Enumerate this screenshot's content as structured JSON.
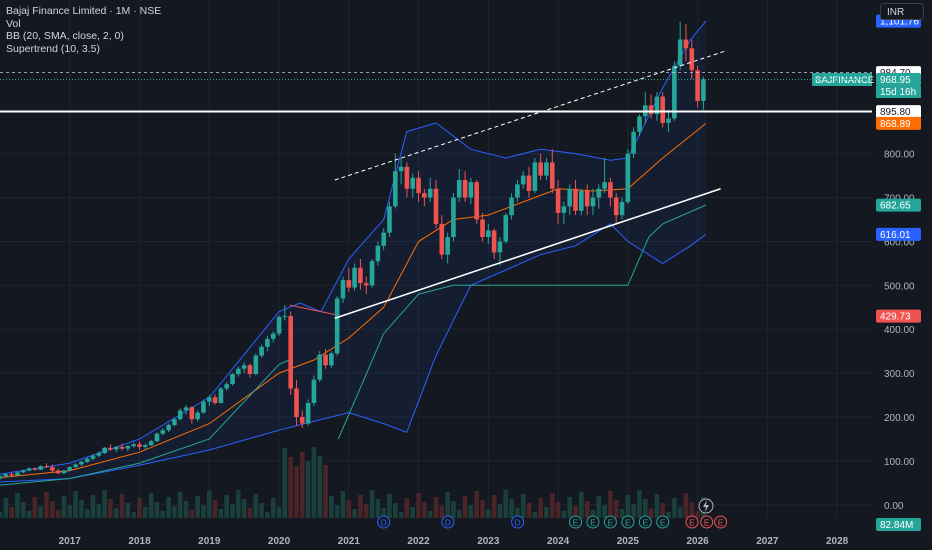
{
  "header": {
    "symbol_line": "Bajaj Finance Limited · 1M · NSE",
    "indicators": [
      "Vol",
      "BB (20, SMA, close, 2, 0)",
      "Supertrend (10, 3.5)"
    ],
    "currency": "INR"
  },
  "colors": {
    "background": "#141821",
    "grid": "#1f2430",
    "up": "#26a69a",
    "down": "#ef5350",
    "bb_band": "#2962ff",
    "bb_basis": "#ff6d00",
    "supertrend_up": "#26a69a",
    "supertrend_down": "#ef5350",
    "trendline": "#ffffff"
  },
  "chart_data": {
    "type": "candlestick",
    "title": "Bajaj Finance Limited · 1M · NSE",
    "ylim": [
      -30,
      1150
    ],
    "y_ticks": [
      0,
      100,
      200,
      300,
      400,
      500,
      600,
      700,
      800
    ],
    "y_tick_labels": [
      "0.00",
      "100.00",
      "200.00",
      "300.00",
      "400.00",
      "500.00",
      "600.00",
      "700.00",
      "800.00"
    ],
    "x_ticks": [
      "2017",
      "2018",
      "2019",
      "2020",
      "2021",
      "2022",
      "2023",
      "2024",
      "2025",
      "2026",
      "2027",
      "2028"
    ],
    "x_range": [
      2016.0,
      2028.5
    ],
    "grid": true,
    "candles": [
      [
        2016.0,
        60,
        68,
        58,
        65
      ],
      [
        2016.083,
        65,
        72,
        62,
        70
      ],
      [
        2016.167,
        70,
        74,
        65,
        67
      ],
      [
        2016.25,
        67,
        76,
        66,
        74
      ],
      [
        2016.333,
        74,
        80,
        72,
        78
      ],
      [
        2016.417,
        78,
        85,
        76,
        83
      ],
      [
        2016.5,
        83,
        86,
        78,
        80
      ],
      [
        2016.583,
        80,
        90,
        79,
        88
      ],
      [
        2016.667,
        88,
        95,
        84,
        86
      ],
      [
        2016.75,
        86,
        92,
        75,
        78
      ],
      [
        2016.833,
        78,
        82,
        70,
        72
      ],
      [
        2016.917,
        72,
        80,
        70,
        78
      ],
      [
        2017.0,
        78,
        88,
        76,
        86
      ],
      [
        2017.083,
        86,
        95,
        84,
        92
      ],
      [
        2017.167,
        92,
        100,
        88,
        98
      ],
      [
        2017.25,
        98,
        108,
        95,
        105
      ],
      [
        2017.333,
        105,
        115,
        102,
        112
      ],
      [
        2017.417,
        112,
        122,
        108,
        118
      ],
      [
        2017.5,
        118,
        132,
        116,
        130
      ],
      [
        2017.583,
        130,
        138,
        122,
        126
      ],
      [
        2017.667,
        126,
        134,
        120,
        132
      ],
      [
        2017.75,
        132,
        140,
        124,
        128
      ],
      [
        2017.833,
        128,
        136,
        122,
        134
      ],
      [
        2017.917,
        134,
        142,
        130,
        138
      ],
      [
        2018.0,
        138,
        145,
        125,
        132
      ],
      [
        2018.083,
        132,
        140,
        126,
        136
      ],
      [
        2018.167,
        136,
        148,
        134,
        145
      ],
      [
        2018.25,
        145,
        165,
        143,
        162
      ],
      [
        2018.333,
        162,
        175,
        158,
        170
      ],
      [
        2018.417,
        170,
        185,
        166,
        182
      ],
      [
        2018.5,
        182,
        198,
        178,
        195
      ],
      [
        2018.583,
        195,
        220,
        192,
        215
      ],
      [
        2018.667,
        215,
        228,
        205,
        222
      ],
      [
        2018.75,
        222,
        225,
        185,
        195
      ],
      [
        2018.833,
        195,
        215,
        190,
        210
      ],
      [
        2018.917,
        210,
        240,
        208,
        235
      ],
      [
        2019.0,
        235,
        250,
        225,
        245
      ],
      [
        2019.083,
        245,
        252,
        228,
        232
      ],
      [
        2019.167,
        232,
        268,
        230,
        265
      ],
      [
        2019.25,
        265,
        280,
        260,
        275
      ],
      [
        2019.333,
        275,
        300,
        272,
        298
      ],
      [
        2019.417,
        298,
        315,
        292,
        310
      ],
      [
        2019.5,
        310,
        325,
        300,
        318
      ],
      [
        2019.583,
        318,
        322,
        290,
        298
      ],
      [
        2019.667,
        298,
        345,
        295,
        340
      ],
      [
        2019.75,
        340,
        365,
        335,
        360
      ],
      [
        2019.833,
        360,
        385,
        350,
        378
      ],
      [
        2019.917,
        378,
        395,
        370,
        390
      ],
      [
        2020.0,
        390,
        432,
        385,
        428
      ],
      [
        2020.083,
        428,
        455,
        420,
        430
      ],
      [
        2020.167,
        430,
        440,
        250,
        265
      ],
      [
        2020.25,
        265,
        285,
        180,
        200
      ],
      [
        2020.333,
        200,
        215,
        175,
        185
      ],
      [
        2020.417,
        185,
        240,
        180,
        232
      ],
      [
        2020.5,
        232,
        295,
        225,
        285
      ],
      [
        2020.583,
        285,
        350,
        280,
        342
      ],
      [
        2020.667,
        342,
        355,
        310,
        318
      ],
      [
        2020.75,
        318,
        350,
        312,
        345
      ],
      [
        2020.833,
        345,
        475,
        340,
        470
      ],
      [
        2020.917,
        470,
        520,
        460,
        512
      ],
      [
        2021.0,
        512,
        540,
        485,
        495
      ],
      [
        2021.083,
        495,
        550,
        488,
        540
      ],
      [
        2021.167,
        540,
        560,
        490,
        505
      ],
      [
        2021.25,
        505,
        520,
        480,
        500
      ],
      [
        2021.333,
        500,
        560,
        495,
        555
      ],
      [
        2021.417,
        555,
        600,
        545,
        590
      ],
      [
        2021.5,
        590,
        630,
        580,
        620
      ],
      [
        2021.583,
        620,
        690,
        610,
        680
      ],
      [
        2021.667,
        680,
        800,
        675,
        760
      ],
      [
        2021.75,
        760,
        790,
        730,
        770
      ],
      [
        2021.833,
        770,
        780,
        700,
        720
      ],
      [
        2021.917,
        720,
        755,
        700,
        745
      ],
      [
        2022.0,
        745,
        760,
        690,
        710
      ],
      [
        2022.083,
        710,
        720,
        680,
        700
      ],
      [
        2022.167,
        700,
        745,
        690,
        720
      ],
      [
        2022.25,
        720,
        740,
        630,
        640
      ],
      [
        2022.333,
        640,
        660,
        560,
        570
      ],
      [
        2022.417,
        570,
        620,
        550,
        610
      ],
      [
        2022.5,
        610,
        710,
        600,
        700
      ],
      [
        2022.583,
        700,
        765,
        690,
        740
      ],
      [
        2022.667,
        740,
        760,
        690,
        700
      ],
      [
        2022.75,
        700,
        745,
        685,
        735
      ],
      [
        2022.833,
        735,
        740,
        640,
        650
      ],
      [
        2022.917,
        650,
        665,
        600,
        610
      ],
      [
        2023.0,
        610,
        640,
        595,
        625
      ],
      [
        2023.083,
        625,
        630,
        560,
        575
      ],
      [
        2023.167,
        575,
        610,
        545,
        600
      ],
      [
        2023.25,
        600,
        665,
        595,
        660
      ],
      [
        2023.333,
        660,
        710,
        650,
        700
      ],
      [
        2023.417,
        700,
        740,
        690,
        730
      ],
      [
        2023.5,
        730,
        760,
        720,
        750
      ],
      [
        2023.583,
        750,
        770,
        700,
        715
      ],
      [
        2023.667,
        715,
        790,
        710,
        780
      ],
      [
        2023.75,
        780,
        800,
        740,
        750
      ],
      [
        2023.833,
        750,
        790,
        740,
        780
      ],
      [
        2023.917,
        780,
        810,
        710,
        720
      ],
      [
        2024.0,
        720,
        740,
        640,
        665
      ],
      [
        2024.083,
        665,
        690,
        640,
        680
      ],
      [
        2024.167,
        680,
        730,
        660,
        720
      ],
      [
        2024.25,
        720,
        740,
        660,
        670
      ],
      [
        2024.333,
        670,
        720,
        660,
        715
      ],
      [
        2024.417,
        715,
        730,
        660,
        680
      ],
      [
        2024.5,
        680,
        720,
        660,
        700
      ],
      [
        2024.583,
        700,
        730,
        675,
        720
      ],
      [
        2024.667,
        720,
        790,
        710,
        735
      ],
      [
        2024.75,
        735,
        745,
        680,
        700
      ],
      [
        2024.833,
        700,
        710,
        640,
        660
      ],
      [
        2024.917,
        660,
        700,
        650,
        690
      ],
      [
        2025.0,
        690,
        810,
        685,
        800
      ],
      [
        2025.083,
        800,
        860,
        790,
        850
      ],
      [
        2025.167,
        850,
        890,
        840,
        885
      ],
      [
        2025.25,
        885,
        940,
        870,
        910
      ],
      [
        2025.333,
        910,
        935,
        880,
        890
      ],
      [
        2025.417,
        890,
        940,
        875,
        930
      ],
      [
        2025.5,
        930,
        940,
        860,
        870
      ],
      [
        2025.583,
        870,
        900,
        850,
        880
      ],
      [
        2025.667,
        880,
        1010,
        875,
        1000
      ],
      [
        2025.75,
        1000,
        1100,
        990,
        1060
      ],
      [
        2025.833,
        1060,
        1095,
        1010,
        1040
      ],
      [
        2025.917,
        1040,
        1060,
        970,
        990
      ],
      [
        2026.0,
        990,
        1000,
        905,
        920
      ],
      [
        2026.083,
        920,
        975,
        900,
        969
      ]
    ],
    "volume_label": "82.84M",
    "bb_upper": [
      [
        2016.0,
        70
      ],
      [
        2017.0,
        95
      ],
      [
        2018.0,
        150
      ],
      [
        2019.0,
        245
      ],
      [
        2020.0,
        440
      ],
      [
        2020.3,
        460
      ],
      [
        2020.6,
        440
      ],
      [
        2021.0,
        560
      ],
      [
        2021.5,
        650
      ],
      [
        2021.83,
        850
      ],
      [
        2022.25,
        870
      ],
      [
        2022.75,
        810
      ],
      [
        2023.25,
        790
      ],
      [
        2023.75,
        810
      ],
      [
        2024.25,
        800
      ],
      [
        2024.75,
        785
      ],
      [
        2025.0,
        790
      ],
      [
        2025.5,
        950
      ],
      [
        2025.9,
        1060
      ],
      [
        2026.12,
        1102
      ]
    ],
    "bb_basis": [
      [
        2016.0,
        62
      ],
      [
        2017.0,
        78
      ],
      [
        2018.0,
        120
      ],
      [
        2019.0,
        185
      ],
      [
        2020.0,
        300
      ],
      [
        2020.5,
        330
      ],
      [
        2021.0,
        380
      ],
      [
        2021.5,
        450
      ],
      [
        2022.0,
        600
      ],
      [
        2022.5,
        650
      ],
      [
        2023.0,
        660
      ],
      [
        2023.5,
        690
      ],
      [
        2024.0,
        720
      ],
      [
        2024.5,
        715
      ],
      [
        2025.0,
        720
      ],
      [
        2025.5,
        790
      ],
      [
        2026.12,
        869
      ]
    ],
    "bb_lower": [
      [
        2016.0,
        52
      ],
      [
        2017.0,
        60
      ],
      [
        2018.0,
        90
      ],
      [
        2019.0,
        125
      ],
      [
        2020.0,
        170
      ],
      [
        2020.5,
        190
      ],
      [
        2021.0,
        210
      ],
      [
        2021.5,
        185
      ],
      [
        2021.83,
        165
      ],
      [
        2022.25,
        340
      ],
      [
        2022.75,
        500
      ],
      [
        2023.25,
        535
      ],
      [
        2023.75,
        570
      ],
      [
        2024.25,
        590
      ],
      [
        2024.75,
        640
      ],
      [
        2025.0,
        600
      ],
      [
        2025.5,
        550
      ],
      [
        2025.9,
        590
      ],
      [
        2026.12,
        616
      ]
    ],
    "supertrend": [
      {
        "dir": "up",
        "points": [
          [
            2016.0,
            45
          ],
          [
            2017.0,
            60
          ],
          [
            2018.0,
            95
          ],
          [
            2019.0,
            150
          ],
          [
            2020.0,
            320
          ],
          [
            2020.15,
            330
          ]
        ]
      },
      {
        "dir": "down",
        "points": [
          [
            2020.15,
            455
          ],
          [
            2020.85,
            432
          ]
        ]
      },
      {
        "dir": "up",
        "points": [
          [
            2020.85,
            150
          ],
          [
            2021.5,
            390
          ],
          [
            2022.0,
            480
          ],
          [
            2022.5,
            500
          ],
          [
            2023.0,
            500
          ],
          [
            2023.5,
            500
          ],
          [
            2024.0,
            500
          ],
          [
            2024.5,
            500
          ],
          [
            2025.0,
            500
          ],
          [
            2025.3,
            610
          ],
          [
            2025.5,
            640
          ],
          [
            2026.12,
            683
          ]
        ]
      }
    ],
    "trendlines": [
      {
        "style": "dashed",
        "points": [
          [
            2020.8,
            740
          ],
          [
            2026.42,
            1035
          ]
        ]
      },
      {
        "style": "solid",
        "points": [
          [
            2020.8,
            425
          ],
          [
            2026.33,
            720
          ]
        ]
      },
      {
        "style": "solid",
        "points": [
          [
            2016.0,
            896
          ],
          [
            2028.5,
            896
          ]
        ]
      },
      {
        "style": "dashed-thin",
        "points": [
          [
            2016.0,
            985
          ],
          [
            2028.5,
            985
          ]
        ]
      }
    ],
    "price_labels": [
      {
        "value": 1101.76,
        "text": "1,101.76",
        "color": "#2962ff"
      },
      {
        "value": 984.7,
        "text": "984.70",
        "color": "#ffffff"
      },
      {
        "value": 968.95,
        "text": "968.95",
        "color": "#26a69a"
      },
      {
        "value": 895.8,
        "text": "895.80",
        "color": "#ffffff"
      },
      {
        "value": 868.89,
        "text": "868.89",
        "color": "#ff6d00"
      },
      {
        "value": 682.65,
        "text": "682.65",
        "color": "#26a69a"
      },
      {
        "value": 616.01,
        "text": "616.01",
        "color": "#2962ff"
      },
      {
        "value": 429.73,
        "text": "429.73",
        "color": "#ef5350"
      }
    ],
    "last_price_countdown": "15d 16h",
    "last_price_symbol": "BAJFINANCE",
    "event_markers": [
      {
        "x": 2021.5,
        "label": "D",
        "kind": "dividend"
      },
      {
        "x": 2022.42,
        "label": "D",
        "kind": "dividend"
      },
      {
        "x": 2023.42,
        "label": "D",
        "kind": "dividend"
      },
      {
        "x": 2024.25,
        "label": "E",
        "kind": "earnings"
      },
      {
        "x": 2024.5,
        "label": "E",
        "kind": "earnings"
      },
      {
        "x": 2024.75,
        "label": "E",
        "kind": "earnings"
      },
      {
        "x": 2025.0,
        "label": "E",
        "kind": "earnings"
      },
      {
        "x": 2025.25,
        "label": "E",
        "kind": "earnings"
      },
      {
        "x": 2025.5,
        "label": "E",
        "kind": "earnings"
      },
      {
        "x": 2025.92,
        "label": "E",
        "kind": "earnings"
      },
      {
        "x": 2026.13,
        "label": "E",
        "kind": "earnings"
      },
      {
        "x": 2026.33,
        "label": "E",
        "kind": "earnings"
      }
    ]
  }
}
